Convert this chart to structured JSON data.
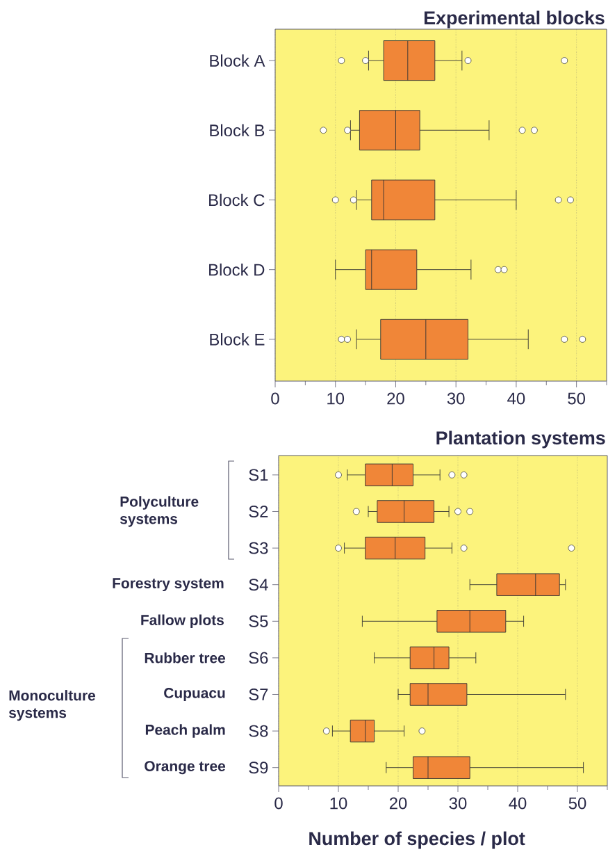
{
  "chart_data": [
    {
      "type": "box",
      "title": "Experimental blocks",
      "orientation": "horizontal",
      "color": "#f08638",
      "grid": "x",
      "xlim": [
        0,
        55
      ],
      "xticks": [
        0,
        {
          "value": 5,
          "label": null
        },
        10,
        {
          "value": 15,
          "label": null
        },
        20,
        {
          "value": 25,
          "label": null
        },
        30,
        {
          "value": 35,
          "label": null
        },
        40,
        {
          "value": 45,
          "label": null
        },
        50,
        {
          "value": 55,
          "label": null
        }
      ],
      "categories": [
        "Block A",
        "Block B",
        "Block C",
        "Block D",
        "Block E"
      ],
      "boxes": [
        {
          "low": 15.5,
          "q1": 18,
          "median": 22,
          "q3": 26.5,
          "high": 31,
          "outliers": [
            11,
            15,
            32,
            48
          ]
        },
        {
          "low": 12.5,
          "q1": 14,
          "median": 20,
          "q3": 24,
          "high": 35.5,
          "outliers": [
            8,
            12,
            41,
            43
          ]
        },
        {
          "low": 13.5,
          "q1": 16,
          "median": 18,
          "q3": 26.5,
          "high": 40,
          "outliers": [
            10,
            13,
            47,
            49
          ]
        },
        {
          "low": 10,
          "q1": 15,
          "median": 16,
          "q3": 23.5,
          "high": 32.5,
          "outliers": [
            37,
            38
          ]
        },
        {
          "low": 13.5,
          "q1": 17.5,
          "median": 25,
          "q3": 32,
          "high": 42,
          "outliers": [
            11,
            12,
            48,
            51
          ]
        }
      ]
    },
    {
      "type": "box",
      "title": "Plantation systems",
      "xlabel": "Number of species / plot",
      "orientation": "horizontal",
      "color": "#f08638",
      "grid": "x",
      "xlim": [
        0,
        55
      ],
      "xticks": [
        0,
        {
          "value": 5,
          "label": null
        },
        10,
        {
          "value": 15,
          "label": null
        },
        20,
        {
          "value": 25,
          "label": null
        },
        30,
        {
          "value": 35,
          "label": null
        },
        40,
        {
          "value": 45,
          "label": null
        },
        50,
        {
          "value": 55,
          "label": null
        }
      ],
      "categories": [
        "S1",
        "S2",
        "S3",
        "S4",
        "S5",
        "S6",
        "S7",
        "S8",
        "S9"
      ],
      "annotations": [
        "Polyculture systems",
        "Forestry system",
        "Fallow plots",
        "Rubber tree",
        "Cupuacu",
        "Peach palm",
        "Orange tree",
        "Monoculture systems"
      ],
      "boxes": [
        {
          "low": 11.5,
          "q1": 14.5,
          "median": 19,
          "q3": 22.5,
          "high": 27,
          "outliers": [
            10,
            29,
            31
          ]
        },
        {
          "low": 15,
          "q1": 16.5,
          "median": 21,
          "q3": 26,
          "high": 28.5,
          "outliers": [
            13,
            30,
            32
          ]
        },
        {
          "low": 11,
          "q1": 14.5,
          "median": 19.5,
          "q3": 24.5,
          "high": 29,
          "outliers": [
            10,
            31,
            49
          ]
        },
        {
          "low": 32,
          "q1": 36.5,
          "median": 43,
          "q3": 47,
          "high": 48
        },
        {
          "low": 14,
          "q1": 26.5,
          "median": 32,
          "q3": 38,
          "high": 41
        },
        {
          "low": 16,
          "q1": 22,
          "median": 26,
          "q3": 28.5,
          "high": 33
        },
        {
          "low": 20,
          "q1": 22,
          "median": 25,
          "q3": 31.5,
          "high": 48
        },
        {
          "low": 9,
          "q1": 12,
          "median": 14.5,
          "q3": 16,
          "high": 21,
          "outliers": [
            8,
            24
          ]
        },
        {
          "low": 18,
          "q1": 22.5,
          "median": 25,
          "q3": 32,
          "high": 51
        }
      ]
    }
  ]
}
